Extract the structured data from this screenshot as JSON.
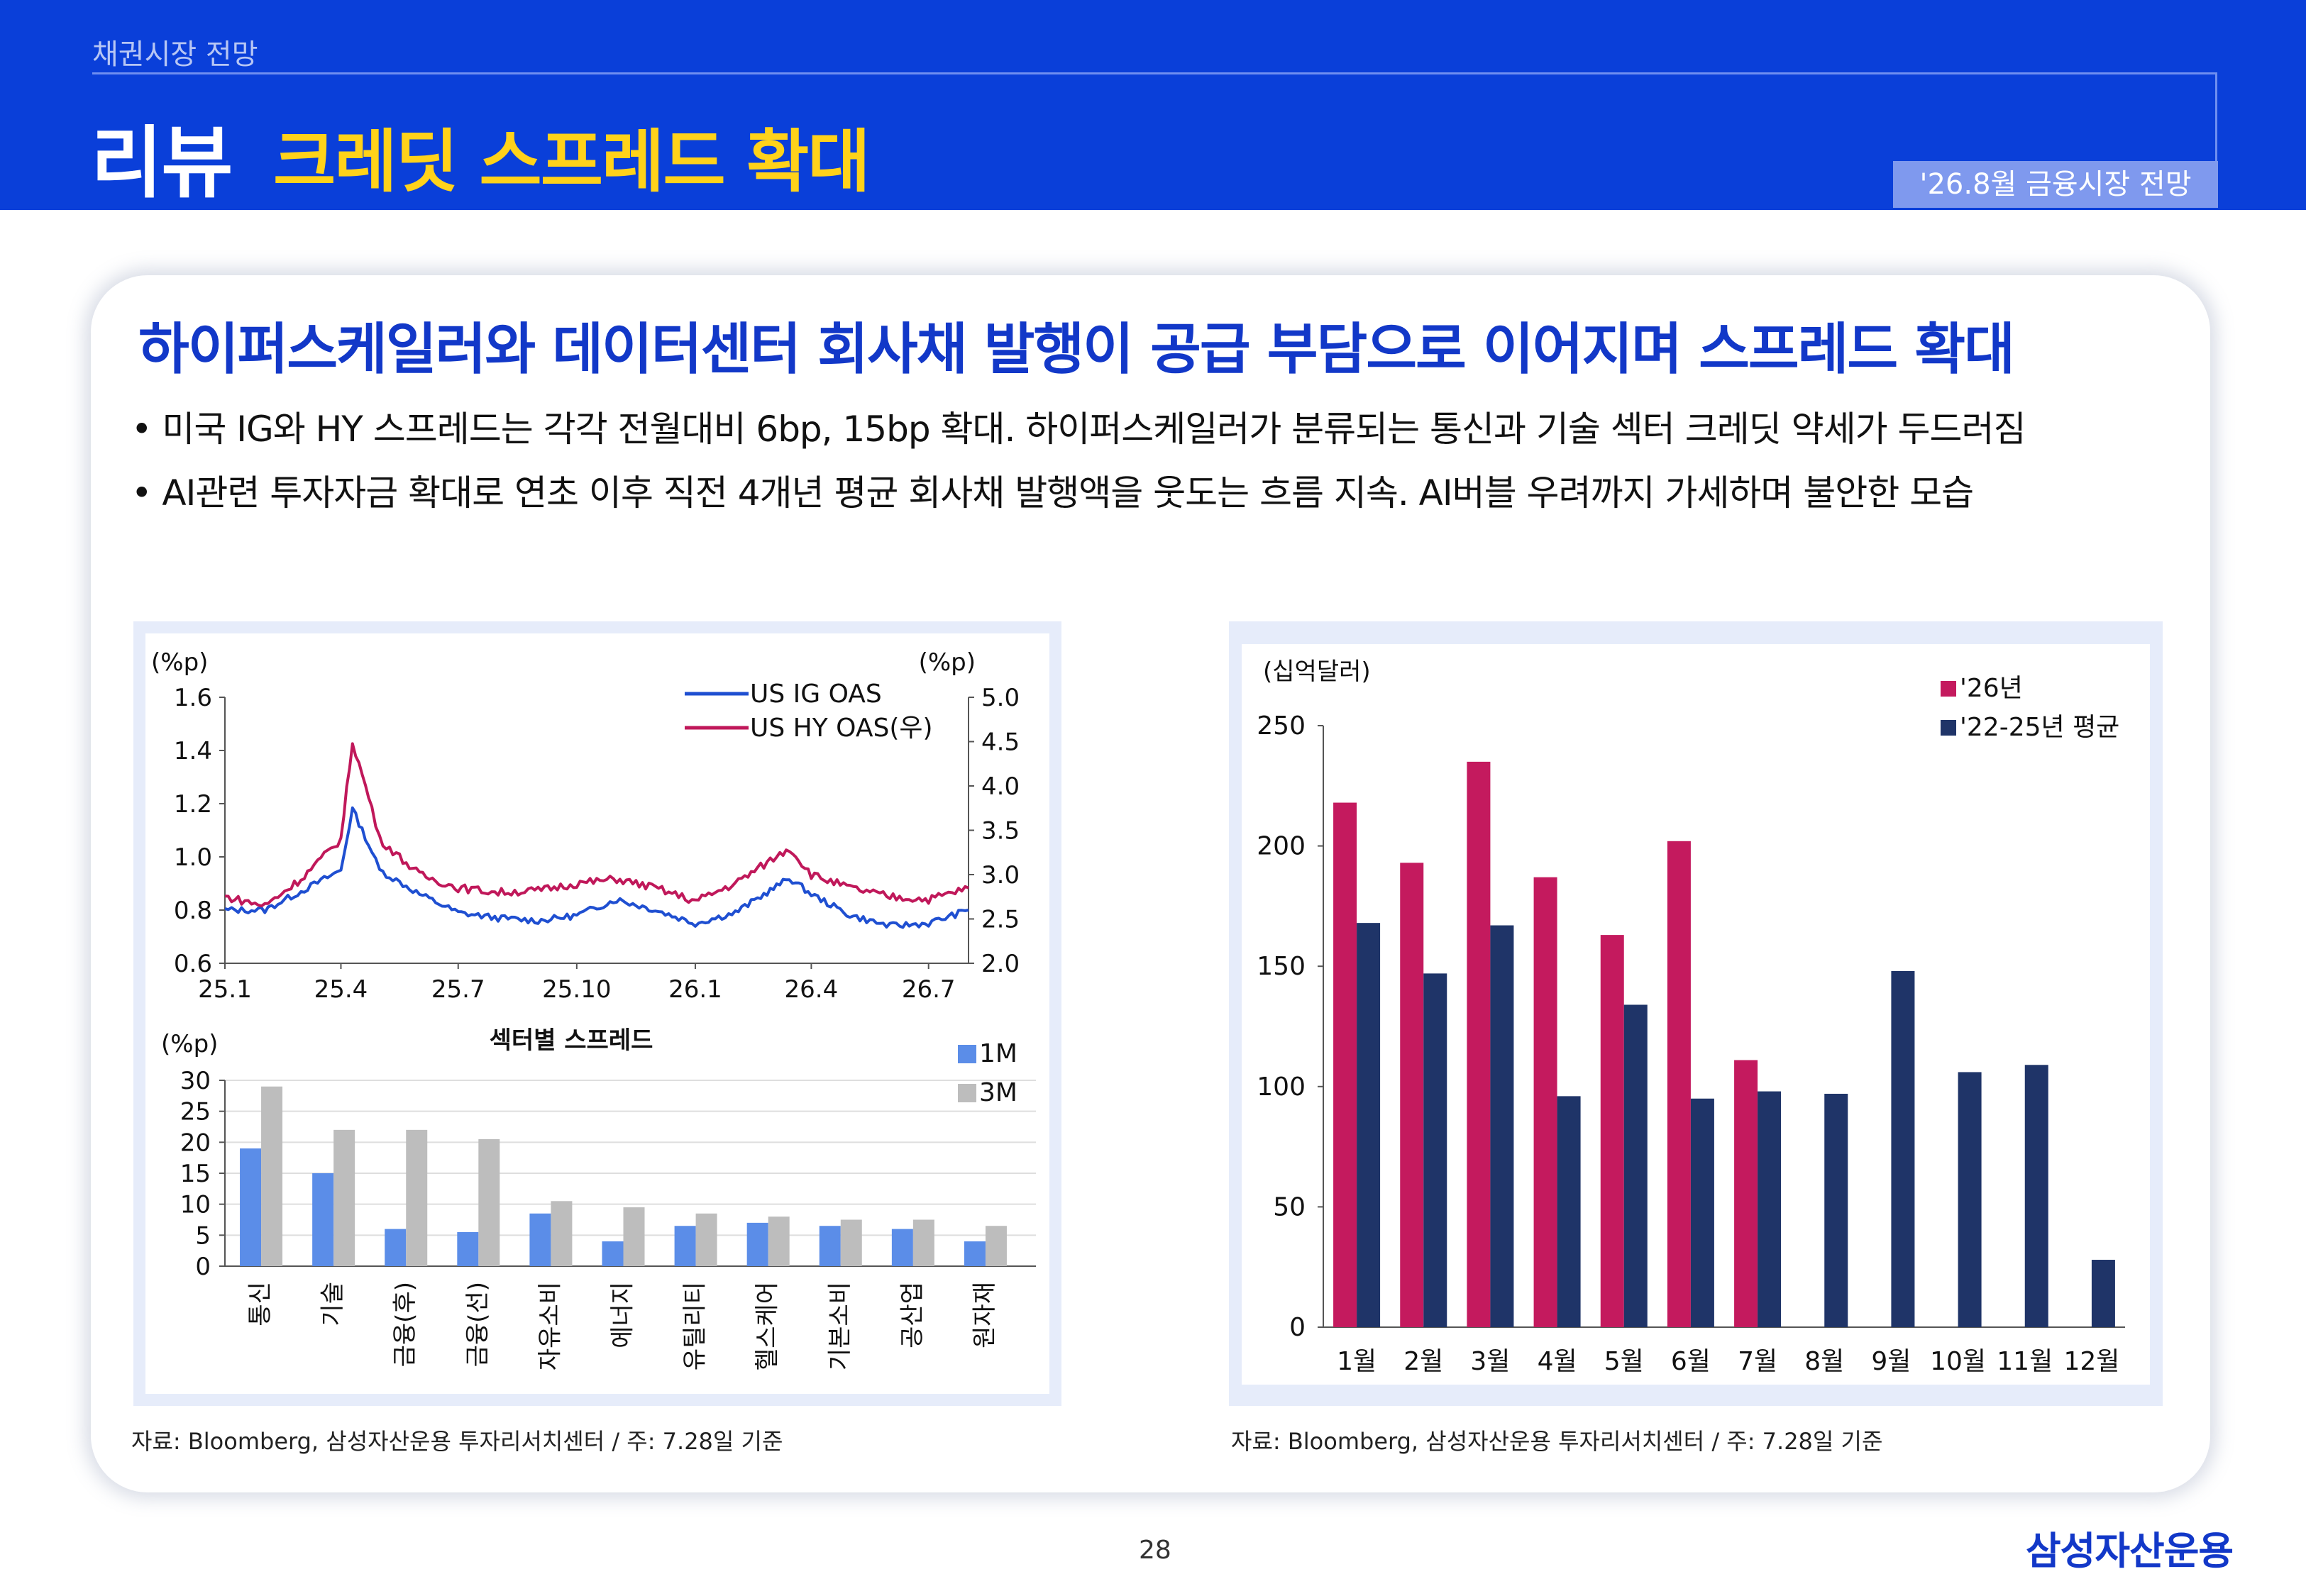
{
  "header": {
    "section": "채권시장 전망",
    "title": "리뷰",
    "subtitle": "크레딧 스프레드 확대",
    "badge": "'26.8월 금융시장 전망"
  },
  "content": {
    "headline": "하이퍼스케일러와 데이터센터 회사채 발행이 공급 부담으로 이어지며 스프레드 확대",
    "bullets": [
      "• 미국 IG와 HY 스프레드는 각각 전월대비 6bp, 15bp 확대. 하이퍼스케일러가 분류되는 통신과 기술 섹터 크레딧 약세가 두드러짐",
      "• AI관련 투자자금 확대로 연초 이후 직전 4개년 평균 회사채 발행액을 웃도는 흐름 지속. AI버블 우려까지 가세하며 불안한 모습"
    ],
    "source_left": "자료: Bloomberg, 삼성자산운용 투자리서치센터 / 주: 7.28일 기준",
    "source_right": "자료: Bloomberg, 삼성자산운용 투자리서치센터 / 주: 7.28일 기준"
  },
  "footer": {
    "page": "28",
    "logo": "삼성자산운용"
  },
  "colors": {
    "header_bg": "#0a3fd9",
    "title_accent": "#ffd21a",
    "headline": "#1238c8",
    "ig_line": "#1f4fd1",
    "hy_line": "#c0185a",
    "bar_1m": "#5b8de8",
    "bar_3m": "#bdbdbd",
    "bar_2026": "#c41a5e",
    "bar_avg": "#1f3468"
  },
  "chart_data": [
    {
      "type": "line",
      "x_tick_labels": [
        "25.1",
        "25.4",
        "25.7",
        "25.10",
        "26.1",
        "26.4",
        "26.7"
      ],
      "x_range": [
        "2025-01",
        "2026-08"
      ],
      "left_unit": "(%p)",
      "right_unit": "(%p)",
      "ylim_left": [
        0.6,
        1.6
      ],
      "yticks_left": [
        "0.6",
        "0.8",
        "1.0",
        "1.2",
        "1.4",
        "1.6"
      ],
      "ylim_right": [
        2.0,
        5.0
      ],
      "yticks_right": [
        "2.0",
        "2.5",
        "3.0",
        "3.5",
        "4.0",
        "4.5",
        "5.0"
      ],
      "legend": "top-right",
      "series": [
        {
          "name": "US IG OAS",
          "axis": "left",
          "points": [
            [
              "2025-01",
              0.8
            ],
            [
              "2025-02",
              0.8
            ],
            [
              "2025-03",
              0.87
            ],
            [
              "2025-04-01",
              0.95
            ],
            [
              "2025-04-10",
              1.18
            ],
            [
              "2025-04-25",
              1.02
            ],
            [
              "2025-05",
              0.95
            ],
            [
              "2025-06",
              0.86
            ],
            [
              "2025-07",
              0.79
            ],
            [
              "2025-08",
              0.77
            ],
            [
              "2025-09",
              0.76
            ],
            [
              "2025-10",
              0.78
            ],
            [
              "2025-11",
              0.84
            ],
            [
              "2025-12",
              0.8
            ],
            [
              "2026-01",
              0.75
            ],
            [
              "2026-02",
              0.79
            ],
            [
              "2026-03-15",
              0.92
            ],
            [
              "2026-04",
              0.86
            ],
            [
              "2026-05",
              0.78
            ],
            [
              "2026-06",
              0.74
            ],
            [
              "2026-07",
              0.75
            ],
            [
              "2026-08",
              0.8
            ]
          ]
        },
        {
          "name": "US HY OAS(우)",
          "axis": "right",
          "points": [
            [
              "2025-01",
              2.75
            ],
            [
              "2025-02",
              2.65
            ],
            [
              "2025-03",
              2.95
            ],
            [
              "2025-04-01",
              3.4
            ],
            [
              "2025-04-10",
              4.5
            ],
            [
              "2025-04-25",
              3.75
            ],
            [
              "2025-05",
              3.4
            ],
            [
              "2025-06",
              3.0
            ],
            [
              "2025-07",
              2.85
            ],
            [
              "2025-08",
              2.8
            ],
            [
              "2025-09",
              2.82
            ],
            [
              "2025-10",
              2.9
            ],
            [
              "2025-11",
              2.95
            ],
            [
              "2025-12",
              2.85
            ],
            [
              "2026-01",
              2.7
            ],
            [
              "2026-02",
              2.9
            ],
            [
              "2026-03-15",
              3.3
            ],
            [
              "2026-04",
              3.0
            ],
            [
              "2026-05",
              2.85
            ],
            [
              "2026-06",
              2.75
            ],
            [
              "2026-07",
              2.72
            ],
            [
              "2026-08",
              2.85
            ]
          ]
        }
      ]
    },
    {
      "type": "bar",
      "title": "섹터별 스프레드",
      "unit": "(%p)",
      "categories": [
        "통신",
        "기술",
        "금융(후)",
        "금융(선)",
        "자유소비",
        "에너지",
        "유틸리티",
        "헬스케어",
        "기본소비",
        "공산업",
        "원자재"
      ],
      "ylim": [
        0,
        30
      ],
      "yticks": [
        "0",
        "5",
        "10",
        "15",
        "20",
        "25",
        "30"
      ],
      "legend": "top-right",
      "series": [
        {
          "name": "1M",
          "values": [
            19,
            15,
            6,
            5.5,
            8.5,
            4,
            6.5,
            7,
            6.5,
            6,
            4
          ]
        },
        {
          "name": "3M",
          "values": [
            29,
            22,
            22,
            20.5,
            10.5,
            9.5,
            8.5,
            8,
            7.5,
            7.5,
            6.5
          ]
        }
      ]
    },
    {
      "type": "bar",
      "unit": "(십억달러)",
      "categories": [
        "1월",
        "2월",
        "3월",
        "4월",
        "5월",
        "6월",
        "7월",
        "8월",
        "9월",
        "10월",
        "11월",
        "12월"
      ],
      "ylim": [
        0,
        250
      ],
      "yticks": [
        "0",
        "50",
        "100",
        "150",
        "200",
        "250"
      ],
      "legend": "top-right",
      "series": [
        {
          "name": "'26년",
          "values": [
            218,
            193,
            235,
            187,
            163,
            202,
            111,
            null,
            null,
            null,
            null,
            null
          ]
        },
        {
          "name": "'22-25년 평균",
          "values": [
            168,
            147,
            167,
            96,
            134,
            95,
            98,
            97,
            148,
            106,
            109,
            28
          ]
        }
      ]
    }
  ]
}
